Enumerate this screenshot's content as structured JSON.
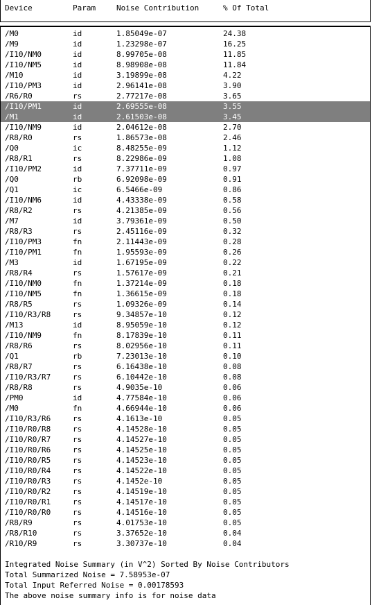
{
  "columns": {
    "device": "Device",
    "param": "Param",
    "noise": "Noise Contribution",
    "pct": "% Of Total"
  },
  "rows": [
    {
      "device": "/M0",
      "param": "id",
      "noise": "1.85049e-07",
      "pct": "24.38",
      "selected": false
    },
    {
      "device": "/M9",
      "param": "id",
      "noise": "1.23298e-07",
      "pct": "16.25",
      "selected": false
    },
    {
      "device": "/I10/NM0",
      "param": "id",
      "noise": "8.99705e-08",
      "pct": "11.85",
      "selected": false
    },
    {
      "device": "/I10/NM5",
      "param": "id",
      "noise": "8.98908e-08",
      "pct": "11.84",
      "selected": false
    },
    {
      "device": "/M10",
      "param": "id",
      "noise": "3.19899e-08",
      "pct": "4.22",
      "selected": false
    },
    {
      "device": "/I10/PM3",
      "param": "id",
      "noise": "2.96141e-08",
      "pct": "3.90",
      "selected": false
    },
    {
      "device": "/R6/R0",
      "param": "rs",
      "noise": "2.77217e-08",
      "pct": "3.65",
      "selected": false
    },
    {
      "device": "/I10/PM1",
      "param": "id",
      "noise": "2.69555e-08",
      "pct": "3.55",
      "selected": true
    },
    {
      "device": "/M1",
      "param": "id",
      "noise": "2.61503e-08",
      "pct": "3.45",
      "selected": true
    },
    {
      "device": "/I10/NM9",
      "param": "id",
      "noise": "2.04612e-08",
      "pct": "2.70",
      "selected": false
    },
    {
      "device": "/R8/R0",
      "param": "rs",
      "noise": "1.86573e-08",
      "pct": "2.46",
      "selected": false
    },
    {
      "device": "/Q0",
      "param": "ic",
      "noise": "8.48255e-09",
      "pct": "1.12",
      "selected": false
    },
    {
      "device": "/R8/R1",
      "param": "rs",
      "noise": "8.22986e-09",
      "pct": "1.08",
      "selected": false
    },
    {
      "device": "/I10/PM2",
      "param": "id",
      "noise": "7.37711e-09",
      "pct": "0.97",
      "selected": false
    },
    {
      "device": "/Q0",
      "param": "rb",
      "noise": "6.92098e-09",
      "pct": "0.91",
      "selected": false
    },
    {
      "device": "/Q1",
      "param": "ic",
      "noise": "6.5466e-09",
      "pct": "0.86",
      "selected": false
    },
    {
      "device": "/I10/NM6",
      "param": "id",
      "noise": "4.43338e-09",
      "pct": "0.58",
      "selected": false
    },
    {
      "device": "/R8/R2",
      "param": "rs",
      "noise": "4.21385e-09",
      "pct": "0.56",
      "selected": false
    },
    {
      "device": "/M7",
      "param": "id",
      "noise": "3.79361e-09",
      "pct": "0.50",
      "selected": false
    },
    {
      "device": "/R8/R3",
      "param": "rs",
      "noise": "2.45116e-09",
      "pct": "0.32",
      "selected": false
    },
    {
      "device": "/I10/PM3",
      "param": "fn",
      "noise": "2.11443e-09",
      "pct": "0.28",
      "selected": false
    },
    {
      "device": "/I10/PM1",
      "param": "fn",
      "noise": "1.95593e-09",
      "pct": "0.26",
      "selected": false
    },
    {
      "device": "/M3",
      "param": "id",
      "noise": "1.67195e-09",
      "pct": "0.22",
      "selected": false
    },
    {
      "device": "/R8/R4",
      "param": "rs",
      "noise": "1.57617e-09",
      "pct": "0.21",
      "selected": false
    },
    {
      "device": "/I10/NM0",
      "param": "fn",
      "noise": "1.37214e-09",
      "pct": "0.18",
      "selected": false
    },
    {
      "device": "/I10/NM5",
      "param": "fn",
      "noise": "1.36615e-09",
      "pct": "0.18",
      "selected": false
    },
    {
      "device": "/R8/R5",
      "param": "rs",
      "noise": "1.09326e-09",
      "pct": "0.14",
      "selected": false
    },
    {
      "device": "/I10/R3/R8",
      "param": "rs",
      "noise": "9.34857e-10",
      "pct": "0.12",
      "selected": false
    },
    {
      "device": "/M13",
      "param": "id",
      "noise": "8.95059e-10",
      "pct": "0.12",
      "selected": false
    },
    {
      "device": "/I10/NM9",
      "param": "fn",
      "noise": "8.17839e-10",
      "pct": "0.11",
      "selected": false
    },
    {
      "device": "/R8/R6",
      "param": "rs",
      "noise": "8.02956e-10",
      "pct": "0.11",
      "selected": false
    },
    {
      "device": "/Q1",
      "param": "rb",
      "noise": "7.23013e-10",
      "pct": "0.10",
      "selected": false
    },
    {
      "device": "/R8/R7",
      "param": "rs",
      "noise": "6.16438e-10",
      "pct": "0.08",
      "selected": false
    },
    {
      "device": "/I10/R3/R7",
      "param": "rs",
      "noise": "6.10442e-10",
      "pct": "0.08",
      "selected": false
    },
    {
      "device": "/R8/R8",
      "param": "rs",
      "noise": "4.9035e-10",
      "pct": "0.06",
      "selected": false
    },
    {
      "device": "/PM0",
      "param": "id",
      "noise": "4.77584e-10",
      "pct": "0.06",
      "selected": false
    },
    {
      "device": "/M0",
      "param": "fn",
      "noise": "4.66944e-10",
      "pct": "0.06",
      "selected": false
    },
    {
      "device": "/I10/R3/R6",
      "param": "rs",
      "noise": "4.1613e-10",
      "pct": "0.05",
      "selected": false
    },
    {
      "device": "/I10/R0/R8",
      "param": "rs",
      "noise": "4.14528e-10",
      "pct": "0.05",
      "selected": false
    },
    {
      "device": "/I10/R0/R7",
      "param": "rs",
      "noise": "4.14527e-10",
      "pct": "0.05",
      "selected": false
    },
    {
      "device": "/I10/R0/R6",
      "param": "rs",
      "noise": "4.14525e-10",
      "pct": "0.05",
      "selected": false
    },
    {
      "device": "/I10/R0/R5",
      "param": "rs",
      "noise": "4.14523e-10",
      "pct": "0.05",
      "selected": false
    },
    {
      "device": "/I10/R0/R4",
      "param": "rs",
      "noise": "4.14522e-10",
      "pct": "0.05",
      "selected": false
    },
    {
      "device": "/I10/R0/R3",
      "param": "rs",
      "noise": "4.1452e-10",
      "pct": "0.05",
      "selected": false
    },
    {
      "device": "/I10/R0/R2",
      "param": "rs",
      "noise": "4.14519e-10",
      "pct": "0.05",
      "selected": false
    },
    {
      "device": "/I10/R0/R1",
      "param": "rs",
      "noise": "4.14517e-10",
      "pct": "0.05",
      "selected": false
    },
    {
      "device": "/I10/R0/R0",
      "param": "rs",
      "noise": "4.14516e-10",
      "pct": "0.05",
      "selected": false
    },
    {
      "device": "/R8/R9",
      "param": "rs",
      "noise": "4.01753e-10",
      "pct": "0.05",
      "selected": false
    },
    {
      "device": "/R8/R10",
      "param": "rs",
      "noise": "3.37652e-10",
      "pct": "0.04",
      "selected": false
    },
    {
      "device": "/R10/R9",
      "param": "rs",
      "noise": "3.30737e-10",
      "pct": "0.04",
      "selected": false
    }
  ],
  "summary": {
    "line1": "Integrated Noise Summary (in V^2) Sorted By Noise Contributors",
    "line2": "Total Summarized Noise = 7.58953e-07",
    "line3": "Total Input Referred Noise = 0.00178593",
    "line4": "The above noise summary info is for noise data"
  },
  "colors": {
    "selected_bg": "#7f7f7f",
    "selected_fg": "#ffffff",
    "background": "#ffffff",
    "text": "#000000"
  }
}
